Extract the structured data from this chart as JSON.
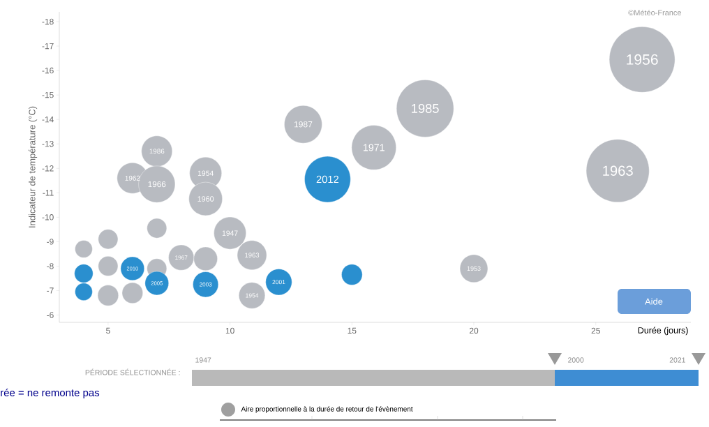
{
  "chart_data": {
    "type": "bubble",
    "xlabel": "Durée (jours)",
    "ylabel": "Indicateur de température (°C)",
    "x": [
      26.9,
      25.9,
      18,
      13,
      15.9,
      14,
      7,
      6,
      7,
      9,
      9,
      10,
      7,
      10.9,
      8,
      9,
      20,
      15,
      12,
      10.9,
      9,
      7,
      7,
      6,
      6,
      5,
      5,
      5,
      4,
      4,
      4
    ],
    "values": [
      -16.45,
      -11.9,
      -14.45,
      -13.8,
      -12.85,
      -11.55,
      -12.7,
      -11.6,
      -11.35,
      -11.8,
      -10.75,
      -9.35,
      -9.55,
      -8.45,
      -8.35,
      -8.3,
      -7.9,
      -7.65,
      -7.35,
      -6.8,
      -7.25,
      -7.9,
      -7.3,
      -7.9,
      -6.9,
      -6.8,
      -8,
      -9.1,
      -8.7,
      -7.7,
      -6.95
    ],
    "sizes": [
      1,
      0.92,
      0.76,
      0.33,
      0.46,
      0.49,
      0.22,
      0.22,
      0.31,
      0.24,
      0.26,
      0.24,
      0.09,
      0.2,
      0.15,
      0.13,
      0.18,
      0.1,
      0.16,
      0.16,
      0.15,
      0.09,
      0.13,
      0.13,
      0.1,
      0.1,
      0.09,
      0.09,
      0.07,
      0.08,
      0.07
    ],
    "colors": [
      "#b8bbc1",
      "#b8bbc1",
      "#b8bbc1",
      "#b8bbc1",
      "#b8bbc1",
      "#2a8fcf",
      "#b8bbc1",
      "#b8bbc1",
      "#b8bbc1",
      "#b8bbc1",
      "#b8bbc1",
      "#b8bbc1",
      "#b8bbc1",
      "#b8bbc1",
      "#b8bbc1",
      "#b8bbc1",
      "#b8bbc1",
      "#2a8fcf",
      "#2a8fcf",
      "#b8bbc1",
      "#2a8fcf",
      "#b8bbc1",
      "#2a8fcf",
      "#2a8fcf",
      "#b8bbc1",
      "#b8bbc1",
      "#b8bbc1",
      "#b8bbc1",
      "#b8bbc1",
      "#2a8fcf",
      "#2a8fcf"
    ],
    "xlim": [
      3,
      28.9
    ],
    "ylim": [
      -5.7,
      -18.4
    ],
    "xticks": [
      5,
      10,
      15,
      20,
      25
    ],
    "yticks": [
      -6,
      -7,
      -8,
      -9,
      -10,
      -11,
      -12,
      -13,
      -14,
      -15,
      -16,
      -17,
      -18
    ],
    "annotations": [
      {
        "text": "1956",
        "x": 26.9,
        "y": -16.45
      },
      {
        "text": "1963",
        "x": 25.9,
        "y": -11.9
      },
      {
        "text": "1985",
        "x": 18,
        "y": -14.45
      },
      {
        "text": "1987",
        "x": 13,
        "y": -13.8
      },
      {
        "text": "1971",
        "x": 15.9,
        "y": -12.85
      },
      {
        "text": "2012",
        "x": 14,
        "y": -11.55
      },
      {
        "text": "1986",
        "x": 7,
        "y": -12.7
      },
      {
        "text": "1962",
        "x": 6,
        "y": -11.6
      },
      {
        "text": "1966",
        "x": 7,
        "y": -11.35
      },
      {
        "text": "1954",
        "x": 9,
        "y": -11.8
      },
      {
        "text": "1960",
        "x": 9,
        "y": -10.75
      },
      {
        "text": "1947",
        "x": 10,
        "y": -9.35
      },
      {
        "text": "1963",
        "x": 10.9,
        "y": -8.45
      },
      {
        "text": "1967",
        "x": 8,
        "y": -8.35
      },
      {
        "text": "1953",
        "x": 20,
        "y": -7.9
      },
      {
        "text": "2001",
        "x": 12,
        "y": -7.35
      },
      {
        "text": "1954",
        "x": 10.9,
        "y": -6.8
      },
      {
        "text": "2003",
        "x": 9,
        "y": -7.25
      },
      {
        "text": "2005",
        "x": 7,
        "y": -7.3
      },
      {
        "text": "2010",
        "x": 6,
        "y": -7.9
      },
      "©Météo-France",
      "Aide",
      "PÉRIODE SÉLECTIONNÉE :",
      "1947",
      "2000",
      "2021",
      "rée = ne remonte pas",
      "Aire proportionnelle à la durée de retour de l'évènement"
    ]
  }
}
